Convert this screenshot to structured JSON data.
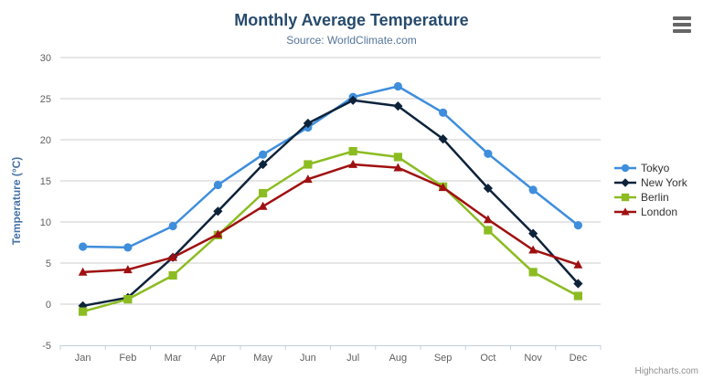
{
  "chart_data": {
    "type": "line",
    "title": "Monthly Average Temperature",
    "subtitle": "Source: WorldClimate.com",
    "categories": [
      "Jan",
      "Feb",
      "Mar",
      "Apr",
      "May",
      "Jun",
      "Jul",
      "Aug",
      "Sep",
      "Oct",
      "Nov",
      "Dec"
    ],
    "xlabel": "",
    "ylabel": "Temperature (°C)",
    "yaxis": {
      "min": -5,
      "max": 30,
      "tick_interval": 5
    },
    "grid": true,
    "legend_position": "right",
    "series": [
      {
        "name": "Tokyo",
        "color": "#3f8edc",
        "marker": "circle",
        "values": [
          7.0,
          6.9,
          9.5,
          14.5,
          18.2,
          21.5,
          25.2,
          26.5,
          23.3,
          18.3,
          13.9,
          9.6
        ]
      },
      {
        "name": "New York",
        "color": "#0d233a",
        "marker": "diamond",
        "values": [
          -0.2,
          0.8,
          5.7,
          11.3,
          17.0,
          22.0,
          24.8,
          24.1,
          20.1,
          14.1,
          8.6,
          2.5
        ]
      },
      {
        "name": "Berlin",
        "color": "#8bbc21",
        "marker": "square",
        "values": [
          -0.9,
          0.6,
          3.5,
          8.4,
          13.5,
          17.0,
          18.6,
          17.9,
          14.3,
          9.0,
          3.9,
          1.0
        ]
      },
      {
        "name": "London",
        "color": "#a01010",
        "marker": "triangle",
        "values": [
          3.9,
          4.2,
          5.7,
          8.5,
          11.9,
          15.2,
          17.0,
          16.6,
          14.2,
          10.3,
          6.6,
          4.8
        ]
      }
    ],
    "colors": {
      "title": "#274b6d",
      "subtitle": "#55759b",
      "axis_label": "#606060",
      "axis_line": "#c0d0e0",
      "gridline": "#cccccc",
      "yaxis_title": "#4572a7"
    }
  },
  "export_menu": {
    "icon": "hamburger-menu-icon"
  },
  "credits": {
    "label": "Highcharts.com"
  }
}
